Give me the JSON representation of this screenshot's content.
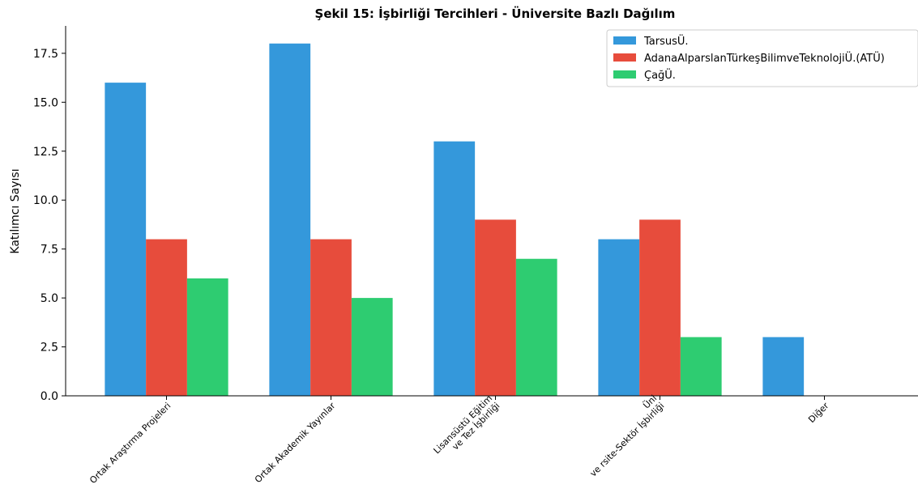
{
  "chart_data": {
    "type": "bar",
    "title": "Şekil 15: İşbirliği Tercihleri - Üniversite Bazlı Dağılım",
    "xlabel": "",
    "ylabel": "Katılımcı Sayısı",
    "ylim": [
      0,
      18.9
    ],
    "yticks": [
      "0.0",
      "2.5",
      "5.0",
      "7.5",
      "10.0",
      "12.5",
      "15.0",
      "17.5"
    ],
    "categories": [
      [
        "Ortak Araştırma Projeleri"
      ],
      [
        "Ortak Akademik Yayınlar"
      ],
      [
        "Lisansüstü Eğitim",
        "ve  Tez İşbirliği"
      ],
      [
        "Üni",
        "ve rsite-Sektör İşbirliği"
      ],
      [
        "Diğer"
      ]
    ],
    "series": [
      {
        "name": "TarsusÜ.",
        "color": "#3498db",
        "values": [
          16,
          18,
          13,
          8,
          3
        ]
      },
      {
        "name": "AdanaAlparslanTürkeşBilimveTeknolojiÜ.(ATÜ)",
        "color": "#e74c3c",
        "values": [
          8,
          8,
          9,
          9,
          0
        ]
      },
      {
        "name": "ÇağÜ.",
        "color": "#2ecc71",
        "values": [
          6,
          5,
          7,
          3,
          0
        ]
      }
    ],
    "grid": false,
    "legend": "top-right"
  }
}
